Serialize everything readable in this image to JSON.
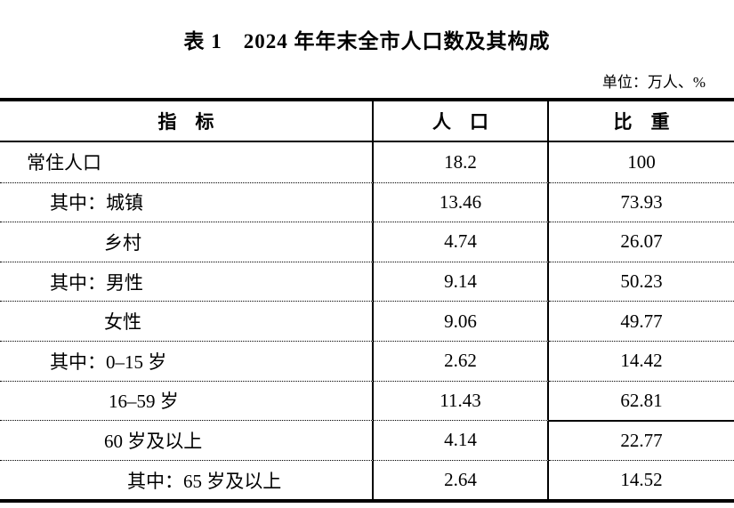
{
  "title": "表 1　2024 年年末全市人口数及其构成",
  "unit_note": "单位：万人、%",
  "table": {
    "headers": [
      "指　标",
      "人　口",
      "比　重"
    ],
    "rows": [
      {
        "indicator": "常住人口",
        "population": "18.2",
        "share": "100"
      },
      {
        "indicator": "其中：城镇",
        "population": "13.46",
        "share": "73.93"
      },
      {
        "indicator": "乡村",
        "population": "4.74",
        "share": "26.07"
      },
      {
        "indicator": "其中：男性",
        "population": "9.14",
        "share": "50.23"
      },
      {
        "indicator": "女性",
        "population": "9.06",
        "share": "49.77"
      },
      {
        "indicator": "其中：0–15 岁",
        "population": "2.62",
        "share": "14.42"
      },
      {
        "indicator": "16–59 岁",
        "population": "11.43",
        "share": "62.81"
      },
      {
        "indicator": "60 岁及以上",
        "population": "4.14",
        "share": "22.77"
      },
      {
        "indicator": "其中：65 岁及以上",
        "population": "2.64",
        "share": "14.52"
      }
    ]
  }
}
